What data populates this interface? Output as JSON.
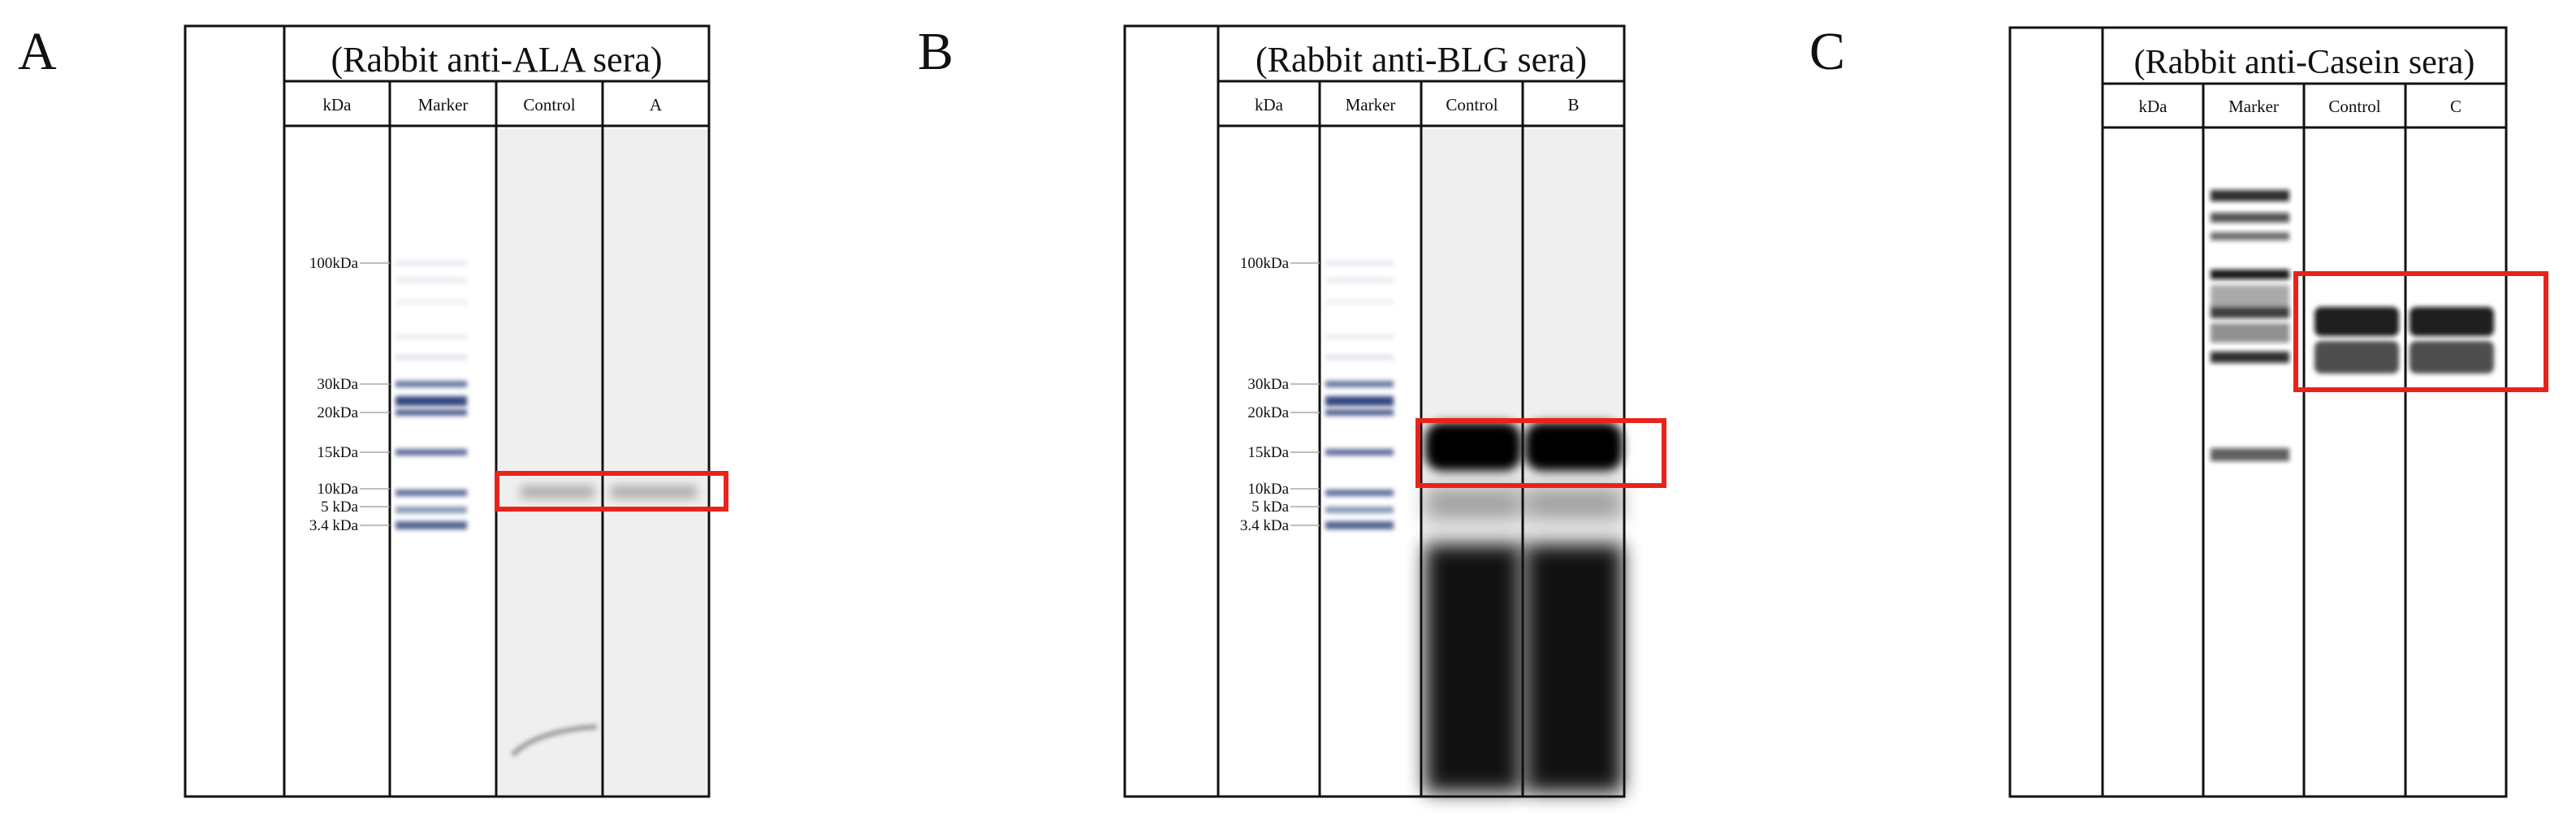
{
  "highlight_color": "#e8231c",
  "panels": [
    {
      "letter": "A",
      "title": "(Rabbit anti-ALA sera)",
      "headers": [
        "kDa",
        "Marker",
        "Control",
        "A"
      ],
      "marker_labels": [
        "100kDa",
        "30kDa",
        "20kDa",
        "15kDa",
        "10kDa",
        "5 kDa",
        "3.4 kDa"
      ]
    },
    {
      "letter": "B",
      "title": "(Rabbit anti-BLG sera)",
      "headers": [
        "kDa",
        "Marker",
        "Control",
        "B"
      ],
      "marker_labels": [
        "100kDa",
        "30kDa",
        "20kDa",
        "15kDa",
        "10kDa",
        "5 kDa",
        "3.4 kDa"
      ]
    },
    {
      "letter": "C",
      "title": "(Rabbit anti-Casein sera)",
      "headers": [
        "kDa",
        "Marker",
        "Control",
        "C"
      ],
      "marker_labels": []
    }
  ]
}
